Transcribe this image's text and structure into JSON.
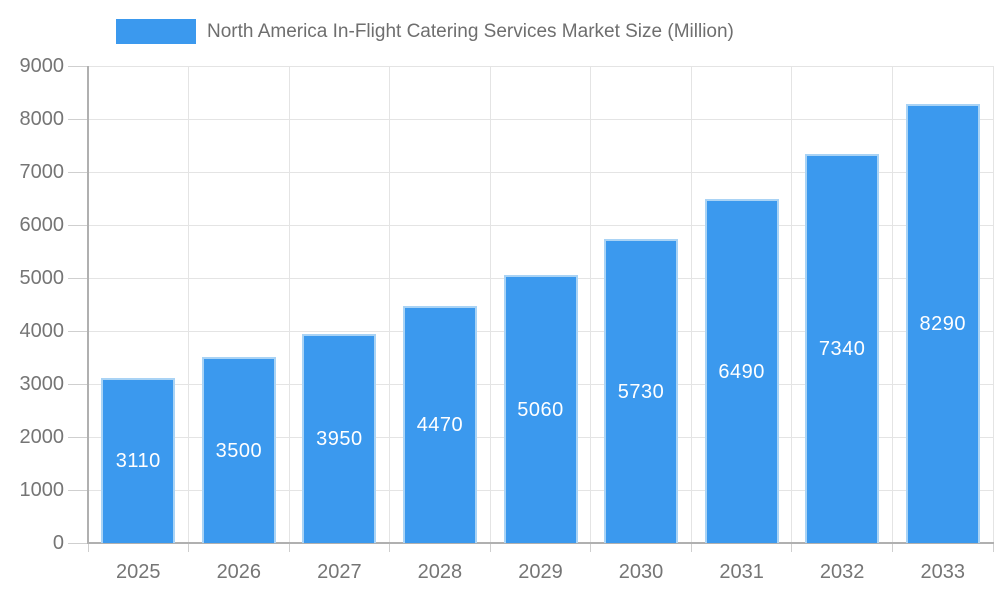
{
  "legend": {
    "label": "North America In-Flight Catering Services Market Size (Million)"
  },
  "chart_data": {
    "type": "bar",
    "title": "North America In-Flight Catering Services Market Size (Million)",
    "categories": [
      "2025",
      "2026",
      "2027",
      "2028",
      "2029",
      "2030",
      "2031",
      "2032",
      "2033"
    ],
    "values": [
      3110,
      3500,
      3950,
      4470,
      5060,
      5730,
      6490,
      7340,
      8290
    ],
    "xlabel": "",
    "ylabel": "",
    "ylim": [
      0,
      9000
    ],
    "y_ticks": [
      0,
      1000,
      2000,
      3000,
      4000,
      5000,
      6000,
      7000,
      8000,
      9000
    ],
    "grid": true,
    "value_label_position": "inside-center",
    "legend_position": "top",
    "colors": {
      "bar": "#3b99ee",
      "bar_border": "#a9d3f5",
      "grid": "#e4e4e4",
      "axis": "#b0b0b0",
      "tick": "#cfcfcf",
      "axis_text": "#757575",
      "legend_text": "#6e6e6e",
      "value_label": "#ffffff",
      "background": "#ffffff"
    }
  }
}
